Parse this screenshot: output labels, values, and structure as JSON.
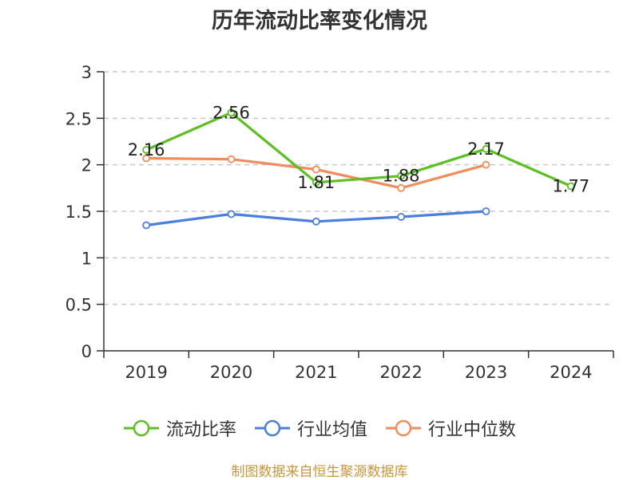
{
  "title": "历年流动比率变化情况",
  "source": "制图数据来自恒生聚源数据库",
  "chart_data": {
    "type": "line",
    "categories": [
      "2019",
      "2020",
      "2021",
      "2022",
      "2023",
      "2024"
    ],
    "ylim": [
      0,
      3
    ],
    "yticks": [
      0,
      0.5,
      1,
      1.5,
      2,
      2.5,
      3
    ],
    "ytick_labels": [
      "0",
      "0.5",
      "1",
      "1.5",
      "2",
      "2.5",
      "3"
    ],
    "grid": "horizontal-dashed",
    "legend_position": "bottom",
    "series": [
      {
        "name": "流动比率",
        "color": "#5cbf22",
        "values": [
          2.16,
          2.56,
          1.81,
          1.88,
          2.17,
          1.77
        ],
        "labels": [
          "2.16",
          "2.56",
          "1.81",
          "1.88",
          "2.17",
          "1.77"
        ]
      },
      {
        "name": "行业均值",
        "color": "#4a7fdd",
        "values": [
          1.35,
          1.47,
          1.39,
          1.44,
          1.5,
          null
        ]
      },
      {
        "name": "行业中位数",
        "color": "#f28c5b",
        "values": [
          2.07,
          2.06,
          1.95,
          1.75,
          2.0,
          null
        ]
      }
    ]
  }
}
